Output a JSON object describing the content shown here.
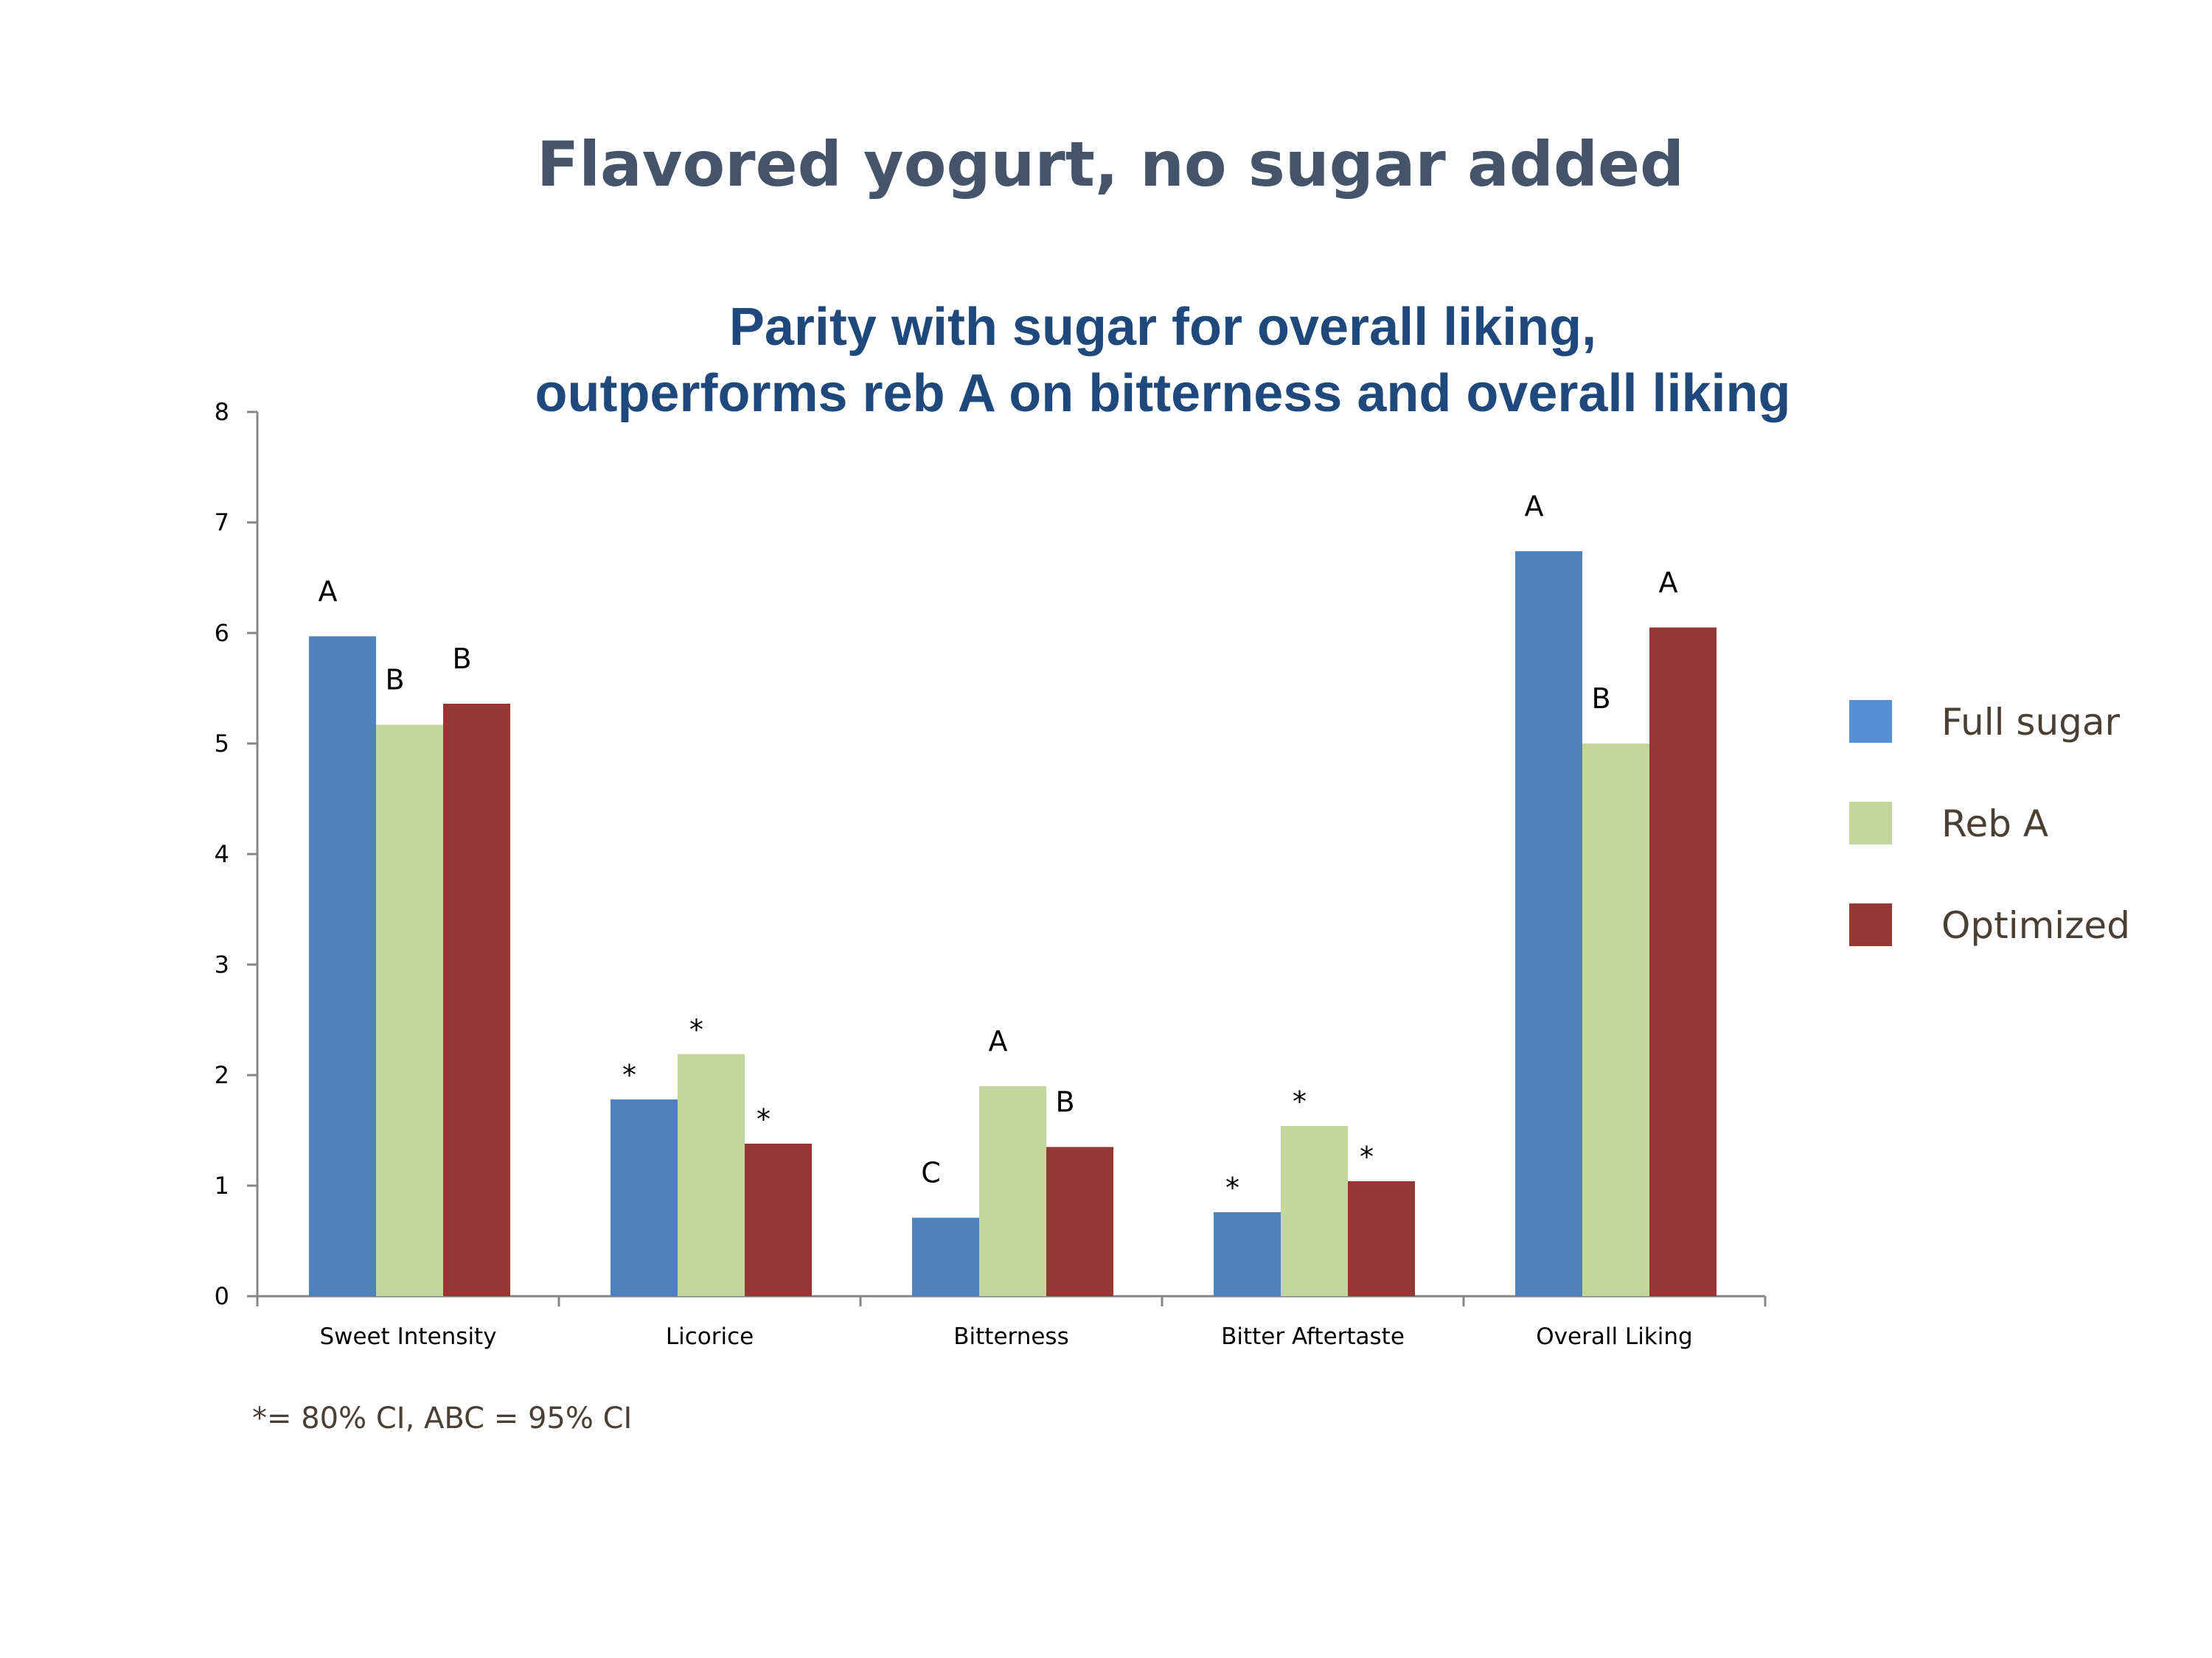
{
  "title": "Flavored yogurt, no sugar added",
  "chart_data": {
    "type": "bar",
    "title": [
      "Parity with sugar for overall liking,",
      "outperforms reb A on bitterness and overall liking"
    ],
    "xlabel": "",
    "ylabel": "",
    "ylim": [
      0,
      8
    ],
    "yticks": [
      "0",
      "1",
      "2",
      "3",
      "4",
      "5",
      "6",
      "7",
      "8"
    ],
    "grid": false,
    "legend_position": "right",
    "categories": [
      "Sweet Intensity",
      "Licorice",
      "Bitterness",
      "Bitter Aftertaste",
      "Overall Liking"
    ],
    "series": [
      {
        "name": "Full sugar",
        "color": "#4f81bd",
        "legend_color": "#558ed5",
        "values": [
          5.97,
          1.78,
          0.71,
          0.76,
          6.74
        ],
        "labels": [
          "A",
          "*",
          "C",
          "*",
          "A"
        ]
      },
      {
        "name": "Reb A",
        "color": "#c3d69b",
        "legend_color": "#c3d69b",
        "values": [
          5.17,
          2.19,
          1.9,
          1.54,
          5.0
        ],
        "labels": [
          "B",
          "*",
          "A",
          "*",
          "B"
        ]
      },
      {
        "name": "Optimized",
        "color": "#953735",
        "legend_color": "#953735",
        "values": [
          5.36,
          1.38,
          1.35,
          1.04,
          6.05
        ],
        "labels": [
          "B",
          "*",
          "B",
          "*",
          "A"
        ]
      }
    ]
  },
  "footnote": "*= 80% CI, ABC = 95% CI"
}
